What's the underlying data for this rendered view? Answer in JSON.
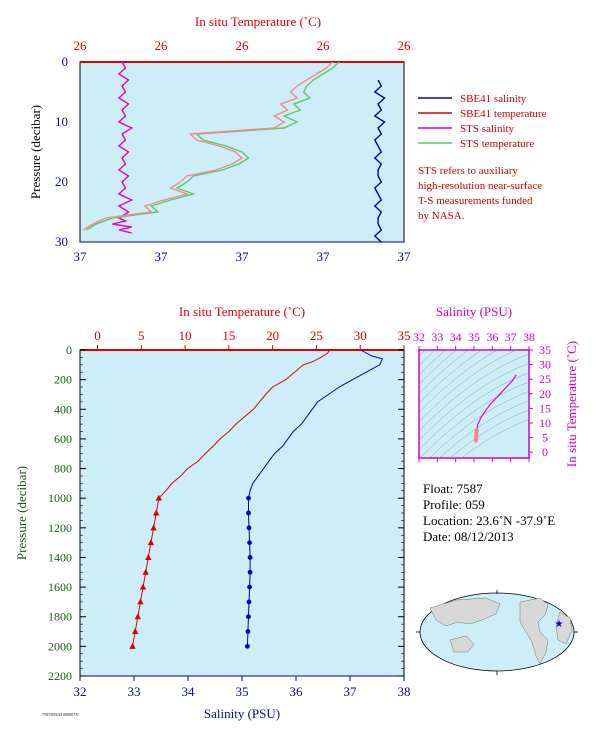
{
  "chart_data": [
    {
      "type": "line",
      "panel": "top",
      "top_axis_title": "In situ Temperature (˚C)",
      "top_axis_ticks": [
        "26",
        "26",
        "26",
        "26",
        "26"
      ],
      "bottom_axis_title": "Salinity (PSU)",
      "bottom_axis_ticks": [
        "37",
        "37",
        "37",
        "37",
        "37"
      ],
      "ylabel": "Pressure (decibar)",
      "y_ticks": [
        "0",
        "10",
        "20",
        "30"
      ],
      "ylim": [
        0,
        30
      ],
      "legend": {
        "placement": "right",
        "entries": [
          {
            "label": "SBE41 salinity",
            "color": "#0000c8"
          },
          {
            "label": "SBE41 temperature",
            "color": "#e00000"
          },
          {
            "label": "STS salinity",
            "color": "#e000e0"
          },
          {
            "label": "STS temperature",
            "color": "#66c266"
          }
        ]
      },
      "note_lines": [
        "STS refers to auxiliary",
        "high-resolution near-surface",
        "T-S measurements funded",
        "by NASA."
      ],
      "series": [
        {
          "name": "STS salinity",
          "color": "#e000e0",
          "x_frac": [
            0.13,
            0.14,
            0.12,
            0.15,
            0.13,
            0.14,
            0.12,
            0.15,
            0.13,
            0.14,
            0.12,
            0.16,
            0.13,
            0.14,
            0.12,
            0.15,
            0.13,
            0.14,
            0.12,
            0.15,
            0.13,
            0.14,
            0.12,
            0.16,
            0.12,
            0.15,
            0.12,
            0.14,
            0.1,
            0.16,
            0.12,
            0.16
          ],
          "pressure": [
            0,
            1,
            2,
            3,
            4,
            5,
            6,
            7,
            8,
            9,
            10,
            11,
            12,
            13,
            14,
            15,
            16,
            17,
            18,
            19,
            20,
            21,
            22,
            23,
            24,
            25,
            26,
            26.5,
            27,
            27.5,
            28,
            28.5
          ]
        },
        {
          "name": "STS temperature",
          "color": "#66c266",
          "x_frac": [
            0.8,
            0.78,
            0.75,
            0.72,
            0.7,
            0.69,
            0.71,
            0.66,
            0.68,
            0.63,
            0.67,
            0.63,
            0.36,
            0.38,
            0.45,
            0.5,
            0.52,
            0.49,
            0.44,
            0.35,
            0.33,
            0.3,
            0.35,
            0.28,
            0.22,
            0.24,
            0.1,
            0.05,
            0.02
          ],
          "pressure": [
            0,
            1,
            2,
            3,
            4,
            5,
            6,
            7,
            8,
            9,
            10,
            11,
            12,
            13,
            14,
            15,
            16,
            17,
            18,
            19,
            20,
            21,
            22,
            23,
            24,
            25,
            26,
            27,
            28
          ]
        },
        {
          "name": "STS temperature (pink)",
          "color": "#f08a8a",
          "x_frac": [
            0.78,
            0.76,
            0.73,
            0.7,
            0.67,
            0.65,
            0.67,
            0.62,
            0.64,
            0.6,
            0.63,
            0.6,
            0.34,
            0.36,
            0.43,
            0.48,
            0.5,
            0.47,
            0.42,
            0.33,
            0.31,
            0.28,
            0.33,
            0.26,
            0.2,
            0.22,
            0.08,
            0.04,
            0.01
          ],
          "pressure": [
            0,
            1,
            2,
            3,
            4,
            5,
            6,
            7,
            8,
            9,
            10,
            11,
            12,
            13,
            14,
            15,
            16,
            17,
            18,
            19,
            20,
            21,
            22,
            23,
            24,
            25,
            26,
            27,
            28
          ]
        },
        {
          "name": "SBE41 salinity",
          "color": "#0000c8",
          "x_frac": [
            0.92,
            0.93,
            0.91,
            0.94,
            0.92,
            0.93,
            0.91,
            0.94,
            0.92,
            0.93,
            0.91,
            0.92,
            0.93,
            0.91,
            0.93,
            0.92,
            0.92,
            0.93,
            0.91,
            0.92,
            0.93,
            0.91,
            0.93,
            0.92,
            0.92,
            0.93,
            0.91,
            0.93
          ],
          "pressure": [
            3,
            4,
            5,
            6,
            7,
            8,
            9,
            10,
            11,
            12,
            13,
            14,
            15,
            16,
            17,
            18,
            19,
            20,
            21,
            22,
            23,
            24,
            25,
            26,
            27,
            28,
            29,
            30
          ]
        }
      ]
    },
    {
      "type": "line",
      "panel": "main",
      "top_axis_title": "In situ Temperature (˚C)",
      "xlabel": "Salinity (PSU)",
      "ylabel": "Pressure (decibar)",
      "temperature_ticks": [
        0,
        5,
        10,
        15,
        20,
        25,
        30,
        35
      ],
      "salinity_ticks": [
        32,
        33,
        34,
        35,
        36,
        37,
        38
      ],
      "pressure_ticks": [
        0,
        200,
        400,
        600,
        800,
        1000,
        1200,
        1400,
        1600,
        1800,
        2000,
        2200
      ],
      "temperature_range": [
        -2,
        35
      ],
      "salinity_range": [
        32,
        38
      ],
      "pressure_range": [
        0,
        2200
      ],
      "series": [
        {
          "name": "SBE41 temperature",
          "color": "#e00000",
          "pressure": [
            0,
            20,
            50,
            80,
            100,
            150,
            200,
            250,
            300,
            350,
            400,
            450,
            500,
            550,
            600,
            650,
            700,
            750,
            800,
            850,
            900,
            950,
            1000,
            1100,
            1200,
            1300,
            1400,
            1500,
            1600,
            1700,
            1800,
            1900,
            2000
          ],
          "values": [
            26.5,
            26.3,
            25.5,
            24.5,
            23.5,
            22.5,
            21.5,
            20.0,
            19.2,
            18.5,
            17.8,
            16.8,
            15.8,
            15.0,
            14.0,
            13.2,
            12.3,
            11.5,
            10.3,
            9.5,
            8.5,
            7.8,
            7.0,
            6.7,
            6.4,
            6.1,
            5.8,
            5.5,
            5.2,
            4.9,
            4.6,
            4.3,
            4.0
          ]
        },
        {
          "name": "SBE41 salinity",
          "color": "#0000c8",
          "pressure": [
            0,
            20,
            40,
            60,
            100,
            150,
            200,
            250,
            300,
            350,
            400,
            450,
            500,
            550,
            600,
            650,
            700,
            750,
            800,
            850,
            900,
            950,
            1000,
            1100,
            1200,
            1300,
            1400,
            1500,
            1600,
            1700,
            1800,
            1900,
            2000
          ],
          "values": [
            37.2,
            37.3,
            37.4,
            37.6,
            37.55,
            37.3,
            37.05,
            36.8,
            36.6,
            36.4,
            36.3,
            36.2,
            36.1,
            35.95,
            35.85,
            35.75,
            35.6,
            35.5,
            35.4,
            35.3,
            35.2,
            35.15,
            35.12,
            35.12,
            35.13,
            35.14,
            35.15,
            35.15,
            35.14,
            35.13,
            35.12,
            35.11,
            35.1
          ]
        }
      ]
    },
    {
      "type": "scatter",
      "panel": "ts-diagram",
      "xlabel": "Salinity (PSU)",
      "ylabel": "In situ Temperature (˚C)",
      "x_ticks": [
        32,
        33,
        34,
        35,
        36,
        37,
        38
      ],
      "y_ticks": [
        0,
        5,
        10,
        15,
        20,
        25,
        30,
        35
      ],
      "xlim": [
        32,
        38
      ],
      "ylim": [
        -2,
        35
      ],
      "series": [
        {
          "name": "T-S profile",
          "color": "#e000e0",
          "x": [
            37.3,
            37.1,
            36.8,
            36.5,
            36.2,
            35.9,
            35.6,
            35.4,
            35.2,
            35.15,
            35.13,
            35.12,
            35.12,
            35.1
          ],
          "y": [
            26.5,
            24.5,
            22.5,
            20.5,
            18.5,
            16.5,
            14.0,
            12.0,
            9.5,
            7.5,
            6.5,
            5.5,
            4.7,
            4.0
          ]
        }
      ]
    }
  ],
  "float_info": {
    "float": "Float:  7587",
    "profile": "Profile:  059",
    "location": "Location:  23.6˚N  -37.9˚E",
    "date": "Date:  08/12/2013"
  },
  "footer_text": "7587/059/45 000007/0",
  "colors": {
    "plot_background": "#cdeef9",
    "temperature": "#e00000",
    "salinity": "#0000c8",
    "ts_axis": "#d000d0",
    "pressure_label": "#1e5a1e"
  }
}
